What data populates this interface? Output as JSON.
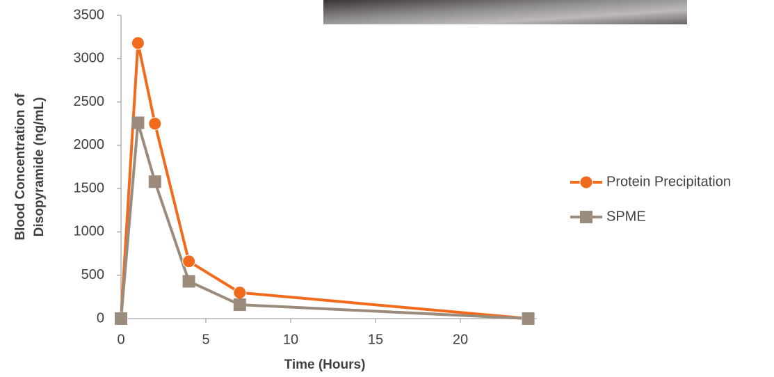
{
  "chart_data": {
    "type": "line",
    "xlabel": "Time (Hours)",
    "ylabel": [
      "Blood Concentration of",
      "Disopyramide (ng/mL)"
    ],
    "x": [
      0,
      1,
      2,
      4,
      7,
      24
    ],
    "series": [
      {
        "name": "Protein Precipitation",
        "color": "#f26b1d",
        "marker": "circle",
        "values": [
          0,
          3180,
          2250,
          660,
          300,
          0
        ]
      },
      {
        "name": "SPME",
        "color": "#9a8b7d",
        "marker": "square",
        "values": [
          0,
          2260,
          1580,
          430,
          160,
          0
        ]
      }
    ],
    "xlim": [
      0,
      24.5
    ],
    "xticks": [
      0,
      5,
      10,
      15,
      20
    ],
    "ylim": [
      0,
      3500
    ],
    "yticks": [
      0,
      500,
      1000,
      1500,
      2000,
      2500,
      3000,
      3500
    ],
    "grid": false,
    "legend": "right"
  }
}
